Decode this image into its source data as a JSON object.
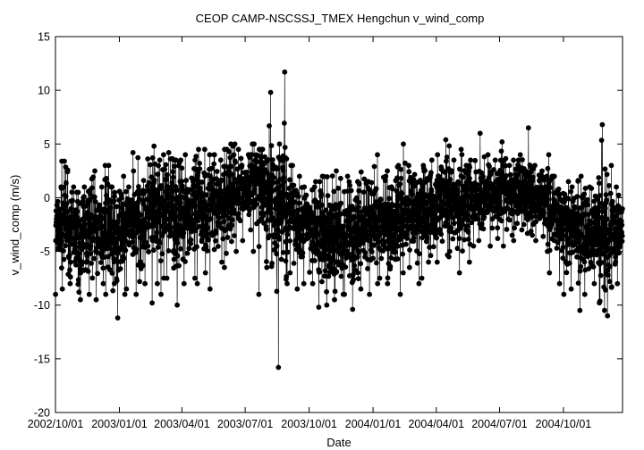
{
  "chart_data": {
    "type": "scatter",
    "title": "CEOP CAMP-NSCSSJ_TMEX Hengchun  v_wind_comp",
    "xlabel": "Date",
    "ylabel": "v_wind_comp  (m/s)",
    "x_range": [
      "2002-10-01",
      "2004-12-25"
    ],
    "ylim": [
      -20,
      15
    ],
    "x_ticks": [
      "2002/10/01",
      "2003/01/01",
      "2003/04/01",
      "2003/07/01",
      "2003/10/01",
      "2004/01/01",
      "2004/04/01",
      "2004/07/01",
      "2004/10/01"
    ],
    "y_ticks": [
      -20,
      -15,
      -10,
      -5,
      0,
      5,
      10,
      15
    ],
    "grid": false,
    "legend": "none",
    "marker": "filled circle, connected by thin line",
    "color": "#000000",
    "series": [
      {
        "x": [
          "2002-10-05",
          "2002-10-15",
          "2002-10-25",
          "2002-11-05",
          "2002-11-15",
          "2002-11-25",
          "2002-12-05",
          "2002-12-15",
          "2002-12-25",
          "2003-01-05",
          "2003-01-15",
          "2003-01-25",
          "2003-02-05",
          "2003-02-15",
          "2003-02-25",
          "2003-03-05",
          "2003-03-15",
          "2003-03-25",
          "2003-04-05",
          "2003-04-15",
          "2003-04-25",
          "2003-05-05",
          "2003-05-15",
          "2003-05-25",
          "2003-06-05",
          "2003-06-15",
          "2003-06-25",
          "2003-07-05",
          "2003-07-15",
          "2003-07-25",
          "2003-08-05",
          "2003-08-15",
          "2003-08-25",
          "2003-09-05",
          "2003-09-15",
          "2003-09-25",
          "2003-10-05",
          "2003-10-15",
          "2003-10-25",
          "2003-11-05",
          "2003-11-15",
          "2003-11-25",
          "2003-12-05",
          "2003-12-15",
          "2003-12-25",
          "2004-01-05",
          "2004-01-15",
          "2004-01-25",
          "2004-02-05",
          "2004-02-15",
          "2004-02-25",
          "2004-03-05",
          "2004-03-15",
          "2004-03-25",
          "2004-04-05",
          "2004-04-15",
          "2004-04-25",
          "2004-05-05",
          "2004-05-15",
          "2004-05-25",
          "2004-06-05",
          "2004-06-15",
          "2004-06-25",
          "2004-07-05",
          "2004-07-15",
          "2004-07-25",
          "2004-08-05",
          "2004-08-15",
          "2004-08-25",
          "2004-09-05",
          "2004-09-15",
          "2004-09-25",
          "2004-10-05",
          "2004-10-15",
          "2004-10-25",
          "2004-11-05",
          "2004-11-15",
          "2004-11-25",
          "2004-12-05",
          "2004-12-15"
        ],
        "y_max": [
          1,
          3.4,
          1,
          0.5,
          1,
          2.5,
          1,
          3,
          1,
          2,
          1,
          4.2,
          2,
          4.8,
          3.5,
          4,
          4.2,
          3.5,
          4,
          3.5,
          4.5,
          4.5,
          4,
          3.5,
          4.5,
          5,
          4.5,
          4,
          5,
          4.5,
          9.8,
          5,
          11.7,
          3,
          2,
          1,
          1,
          1.5,
          2,
          2.5,
          1.8,
          2,
          1.5,
          2.4,
          1.5,
          4,
          2,
          2.5,
          3,
          5,
          3,
          4.5,
          3,
          3.5,
          4,
          5.4,
          3.5,
          4.5,
          3,
          3.5,
          6,
          4,
          3.5,
          5.2,
          3,
          3.5,
          4,
          6.5,
          3,
          4,
          2,
          0.8,
          1.5,
          1,
          2,
          1,
          1.5,
          6.8,
          3,
          1
        ],
        "y_min": [
          -9,
          -8.5,
          -8,
          -9.5,
          -9,
          -9.5,
          -8,
          -9,
          -11.2,
          -9,
          -8.5,
          -9,
          -8,
          -9.8,
          -8,
          -9,
          -7.5,
          -10,
          -8,
          -7.5,
          -8,
          -7,
          -8.5,
          -6,
          -6.5,
          -5,
          -4,
          -3,
          -5,
          -9,
          -6.5,
          -15.8,
          -8,
          -7,
          -8.5,
          -8,
          -8,
          -10.2,
          -10,
          -9.5,
          -9,
          -9,
          -10.4,
          -8.5,
          -9,
          -8,
          -7.5,
          -8,
          -9,
          -7,
          -6.5,
          -8,
          -7.5,
          -6,
          -6,
          -5.5,
          -5,
          -7,
          -6,
          -4.5,
          -4,
          -4.5,
          -3.8,
          -4.5,
          -3.5,
          -4,
          -3,
          -3.5,
          -4,
          -5,
          -7,
          -8,
          -9,
          -8.5,
          -10.5,
          -9,
          -8,
          -10.5,
          -11,
          -8
        ],
        "y_mean": [
          -3,
          -2,
          -3.5,
          -4,
          -3,
          -2.5,
          -3,
          -2,
          -4,
          -3,
          -2.5,
          -2,
          -2,
          -1.5,
          -2,
          -1.5,
          -1,
          -1.5,
          -1,
          -1.5,
          -1,
          -1,
          -0.5,
          -0.5,
          0,
          0.5,
          1,
          1,
          1.5,
          0.5,
          0,
          -1,
          0,
          -1.5,
          -2,
          -2.5,
          -3,
          -3.5,
          -4,
          -3.5,
          -3.5,
          -3,
          -3.5,
          -3,
          -3,
          -2.5,
          -2,
          -2.5,
          -2,
          -1.5,
          -1.5,
          -1,
          -1,
          -1,
          -0.5,
          -0.5,
          0,
          -0.5,
          0,
          0,
          0,
          0.5,
          0,
          0.5,
          0,
          0.5,
          0.5,
          0.5,
          0,
          0,
          -1,
          -2,
          -2.5,
          -3,
          -3.5,
          -3.5,
          -3,
          -3,
          -3.5,
          -3
        ]
      }
    ]
  }
}
